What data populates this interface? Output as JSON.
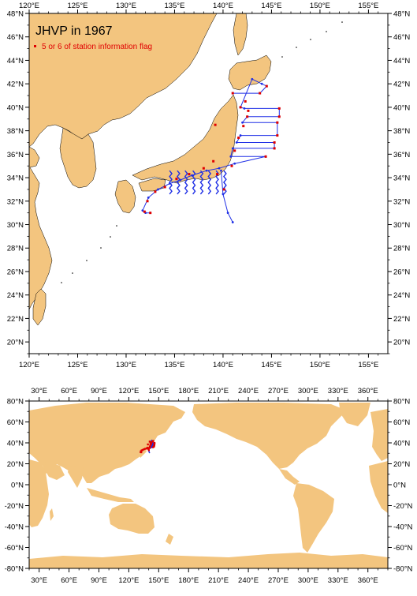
{
  "title": "JHVP in 1967",
  "legend_label": "5 or 6 of station information flag",
  "colors": {
    "land": "#f3c57f",
    "track": "#1f2fe6",
    "flagged": "#e00000",
    "frame": "#000000"
  },
  "main_map": {
    "lon_range": [
      120,
      157
    ],
    "lat_range": [
      19,
      48
    ],
    "x_tick_labels": [
      "120°E",
      "125°E",
      "130°E",
      "135°E",
      "140°E",
      "145°E",
      "150°E",
      "155°E"
    ],
    "y_tick_labels": [
      "20°N",
      "22°N",
      "24°N",
      "26°N",
      "28°N",
      "30°N",
      "32°N",
      "34°N",
      "36°N",
      "38°N",
      "40°N",
      "42°N",
      "44°N",
      "46°N",
      "48°N"
    ]
  },
  "world_map": {
    "lon_range": [
      20,
      380
    ],
    "lat_range": [
      -80,
      80
    ],
    "x_tick_labels": [
      "30°E",
      "60°E",
      "90°E",
      "120°E",
      "150°E",
      "180°E",
      "210°E",
      "240°E",
      "270°E",
      "300°E",
      "330°E",
      "360°E"
    ],
    "y_tick_labels": [
      "-80°N",
      "-60°N",
      "-40°N",
      "-20°N",
      "0°N",
      "20°N",
      "40°N",
      "60°N",
      "80°N"
    ]
  },
  "survey_track": [
    [
      141.0,
      41.2
    ],
    [
      143.8,
      41.2
    ],
    [
      144.5,
      41.8
    ],
    [
      144.0,
      42.0
    ],
    [
      143.0,
      42.4
    ],
    [
      141.8,
      40.0
    ],
    [
      142.2,
      39.9
    ],
    [
      145.8,
      39.9
    ],
    [
      145.8,
      39.2
    ],
    [
      142.5,
      39.2
    ],
    [
      142.0,
      38.7
    ],
    [
      145.6,
      38.7
    ],
    [
      145.6,
      37.6
    ],
    [
      141.8,
      37.6
    ],
    [
      141.4,
      37.0
    ],
    [
      145.3,
      37.0
    ],
    [
      145.3,
      36.5
    ],
    [
      141.0,
      36.5
    ],
    [
      140.8,
      35.8
    ],
    [
      144.4,
      35.8
    ],
    [
      141.2,
      35.2
    ],
    [
      139.6,
      34.8
    ],
    [
      138.3,
      34.6
    ],
    [
      136.8,
      34.2
    ],
    [
      135.6,
      33.8
    ],
    [
      134.5,
      33.5
    ],
    [
      133.3,
      33.0
    ],
    [
      132.3,
      32.3
    ],
    [
      131.7,
      31.2
    ],
    [
      132.0,
      31.0
    ],
    [
      132.5,
      31.0
    ]
  ],
  "izu_line": [
    [
      139.8,
      34.6
    ],
    [
      140.0,
      32.6
    ],
    [
      140.5,
      31.0
    ],
    [
      141.0,
      30.2
    ]
  ],
  "zigzag_meridians": [
    134.6,
    135.4,
    136.2,
    137.0,
    137.8,
    138.6,
    139.4,
    140.2
  ],
  "flagged_stations": [
    [
      141.0,
      41.2
    ],
    [
      143.8,
      41.2
    ],
    [
      144.5,
      41.8
    ],
    [
      141.8,
      40.0
    ],
    [
      145.8,
      39.9
    ],
    [
      145.8,
      39.2
    ],
    [
      142.5,
      39.2
    ],
    [
      145.6,
      38.7
    ],
    [
      145.6,
      37.6
    ],
    [
      145.3,
      37.0
    ],
    [
      145.3,
      36.5
    ],
    [
      144.4,
      35.8
    ],
    [
      139.2,
      38.5
    ],
    [
      139.0,
      35.4
    ],
    [
      138.0,
      34.8
    ],
    [
      136.5,
      34.3
    ],
    [
      135.2,
      33.9
    ],
    [
      134.0,
      33.2
    ],
    [
      133.0,
      32.8
    ],
    [
      132.2,
      32.0
    ],
    [
      131.9,
      31.1
    ],
    [
      132.5,
      31.0
    ],
    [
      140.9,
      35.0
    ],
    [
      141.2,
      36.3
    ],
    [
      141.6,
      37.4
    ],
    [
      142.1,
      38.4
    ],
    [
      142.6,
      39.7
    ],
    [
      142.3,
      40.5
    ],
    [
      139.4,
      34.3
    ],
    [
      140.1,
      33.0
    ]
  ]
}
